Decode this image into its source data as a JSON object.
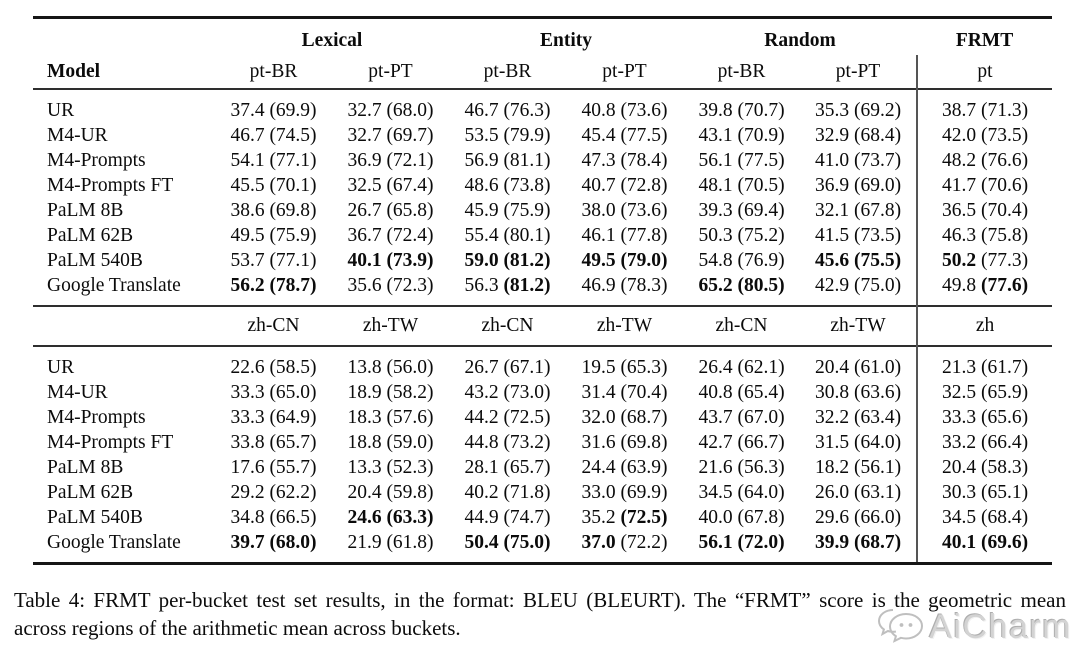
{
  "table": {
    "header": {
      "model_label": "Model",
      "groups": [
        "Lexical",
        "Entity",
        "Random",
        "FRMT"
      ],
      "pt_cols": [
        "pt-BR",
        "pt-PT",
        "pt-BR",
        "pt-PT",
        "pt-BR",
        "pt-PT",
        "pt"
      ],
      "zh_cols": [
        "zh-CN",
        "zh-TW",
        "zh-CN",
        "zh-TW",
        "zh-CN",
        "zh-TW",
        "zh"
      ]
    },
    "sections": [
      {
        "id": "pt",
        "rows": [
          {
            "model": "UR",
            "cells": [
              [
                "37.4",
                "69.9",
                0
              ],
              [
                "32.7",
                "68.0",
                0
              ],
              [
                "46.7",
                "76.3",
                0
              ],
              [
                "40.8",
                "73.6",
                0
              ],
              [
                "39.8",
                "70.7",
                0
              ],
              [
                "35.3",
                "69.2",
                0
              ],
              [
                "38.7",
                "71.3",
                0
              ]
            ]
          },
          {
            "model": "M4-UR",
            "cells": [
              [
                "46.7",
                "74.5",
                0
              ],
              [
                "32.7",
                "69.7",
                0
              ],
              [
                "53.5",
                "79.9",
                0
              ],
              [
                "45.4",
                "77.5",
                0
              ],
              [
                "43.1",
                "70.9",
                0
              ],
              [
                "32.9",
                "68.4",
                0
              ],
              [
                "42.0",
                "73.5",
                0
              ]
            ]
          },
          {
            "model": "M4-Prompts",
            "cells": [
              [
                "54.1",
                "77.1",
                0
              ],
              [
                "36.9",
                "72.1",
                0
              ],
              [
                "56.9",
                "81.1",
                0
              ],
              [
                "47.3",
                "78.4",
                0
              ],
              [
                "56.1",
                "77.5",
                0
              ],
              [
                "41.0",
                "73.7",
                0
              ],
              [
                "48.2",
                "76.6",
                0
              ]
            ]
          },
          {
            "model": "M4-Prompts FT",
            "cells": [
              [
                "45.5",
                "70.1",
                0
              ],
              [
                "32.5",
                "67.4",
                0
              ],
              [
                "48.6",
                "73.8",
                0
              ],
              [
                "40.7",
                "72.8",
                0
              ],
              [
                "48.1",
                "70.5",
                0
              ],
              [
                "36.9",
                "69.0",
                0
              ],
              [
                "41.7",
                "70.6",
                0
              ]
            ]
          },
          {
            "model": "PaLM 8B",
            "cells": [
              [
                "38.6",
                "69.8",
                0
              ],
              [
                "26.7",
                "65.8",
                0
              ],
              [
                "45.9",
                "75.9",
                0
              ],
              [
                "38.0",
                "73.6",
                0
              ],
              [
                "39.3",
                "69.4",
                0
              ],
              [
                "32.1",
                "67.8",
                0
              ],
              [
                "36.5",
                "70.4",
                0
              ]
            ]
          },
          {
            "model": "PaLM 62B",
            "cells": [
              [
                "49.5",
                "75.9",
                0
              ],
              [
                "36.7",
                "72.4",
                0
              ],
              [
                "55.4",
                "80.1",
                0
              ],
              [
                "46.1",
                "77.8",
                0
              ],
              [
                "50.3",
                "75.2",
                0
              ],
              [
                "41.5",
                "73.5",
                0
              ],
              [
                "46.3",
                "75.8",
                0
              ]
            ]
          },
          {
            "model": "PaLM 540B",
            "cells": [
              [
                "53.7",
                "77.1",
                0
              ],
              [
                "40.1",
                "73.9",
                3
              ],
              [
                "59.0",
                "81.2",
                3
              ],
              [
                "49.5",
                "79.0",
                3
              ],
              [
                "54.8",
                "76.9",
                0
              ],
              [
                "45.6",
                "75.5",
                3
              ],
              [
                "50.2",
                "77.3",
                1
              ]
            ]
          },
          {
            "model": "Google Translate",
            "cells": [
              [
                "56.2",
                "78.7",
                3
              ],
              [
                "35.6",
                "72.3",
                0
              ],
              [
                "56.3",
                "81.2",
                2
              ],
              [
                "46.9",
                "78.3",
                0
              ],
              [
                "65.2",
                "80.5",
                3
              ],
              [
                "42.9",
                "75.0",
                0
              ],
              [
                "49.8",
                "77.6",
                2
              ]
            ]
          }
        ]
      },
      {
        "id": "zh",
        "rows": [
          {
            "model": "UR",
            "cells": [
              [
                "22.6",
                "58.5",
                0
              ],
              [
                "13.8",
                "56.0",
                0
              ],
              [
                "26.7",
                "67.1",
                0
              ],
              [
                "19.5",
                "65.3",
                0
              ],
              [
                "26.4",
                "62.1",
                0
              ],
              [
                "20.4",
                "61.0",
                0
              ],
              [
                "21.3",
                "61.7",
                0
              ]
            ]
          },
          {
            "model": "M4-UR",
            "cells": [
              [
                "33.3",
                "65.0",
                0
              ],
              [
                "18.9",
                "58.2",
                0
              ],
              [
                "43.2",
                "73.0",
                0
              ],
              [
                "31.4",
                "70.4",
                0
              ],
              [
                "40.8",
                "65.4",
                0
              ],
              [
                "30.8",
                "63.6",
                0
              ],
              [
                "32.5",
                "65.9",
                0
              ]
            ]
          },
          {
            "model": "M4-Prompts",
            "cells": [
              [
                "33.3",
                "64.9",
                0
              ],
              [
                "18.3",
                "57.6",
                0
              ],
              [
                "44.2",
                "72.5",
                0
              ],
              [
                "32.0",
                "68.7",
                0
              ],
              [
                "43.7",
                "67.0",
                0
              ],
              [
                "32.2",
                "63.4",
                0
              ],
              [
                "33.3",
                "65.6",
                0
              ]
            ]
          },
          {
            "model": "M4-Prompts FT",
            "cells": [
              [
                "33.8",
                "65.7",
                0
              ],
              [
                "18.8",
                "59.0",
                0
              ],
              [
                "44.8",
                "73.2",
                0
              ],
              [
                "31.6",
                "69.8",
                0
              ],
              [
                "42.7",
                "66.7",
                0
              ],
              [
                "31.5",
                "64.0",
                0
              ],
              [
                "33.2",
                "66.4",
                0
              ]
            ]
          },
          {
            "model": "PaLM 8B",
            "cells": [
              [
                "17.6",
                "55.7",
                0
              ],
              [
                "13.3",
                "52.3",
                0
              ],
              [
                "28.1",
                "65.7",
                0
              ],
              [
                "24.4",
                "63.9",
                0
              ],
              [
                "21.6",
                "56.3",
                0
              ],
              [
                "18.2",
                "56.1",
                0
              ],
              [
                "20.4",
                "58.3",
                0
              ]
            ]
          },
          {
            "model": "PaLM 62B",
            "cells": [
              [
                "29.2",
                "62.2",
                0
              ],
              [
                "20.4",
                "59.8",
                0
              ],
              [
                "40.2",
                "71.8",
                0
              ],
              [
                "33.0",
                "69.9",
                0
              ],
              [
                "34.5",
                "64.0",
                0
              ],
              [
                "26.0",
                "63.1",
                0
              ],
              [
                "30.3",
                "65.1",
                0
              ]
            ]
          },
          {
            "model": "PaLM 540B",
            "cells": [
              [
                "34.8",
                "66.5",
                0
              ],
              [
                "24.6",
                "63.3",
                3
              ],
              [
                "44.9",
                "74.7",
                0
              ],
              [
                "35.2",
                "72.5",
                2
              ],
              [
                "40.0",
                "67.8",
                0
              ],
              [
                "29.6",
                "66.0",
                0
              ],
              [
                "34.5",
                "68.4",
                0
              ]
            ]
          },
          {
            "model": "Google Translate",
            "cells": [
              [
                "39.7",
                "68.0",
                3
              ],
              [
                "21.9",
                "61.8",
                0
              ],
              [
                "50.4",
                "75.0",
                3
              ],
              [
                "37.0",
                "72.2",
                1
              ],
              [
                "56.1",
                "72.0",
                3
              ],
              [
                "39.9",
                "68.7",
                3
              ],
              [
                "40.1",
                "69.6",
                3
              ]
            ]
          }
        ]
      }
    ]
  },
  "caption": "Table 4: FRMT per-bucket test set results, in the format: BLEU (BLEURT). The “FRMT” score is the geometric mean across regions of the arithmetic mean across buckets.",
  "watermark": {
    "label": "AiCharm",
    "icon": "chat-bubbles-face-icon",
    "color": "#d3d3d3"
  }
}
